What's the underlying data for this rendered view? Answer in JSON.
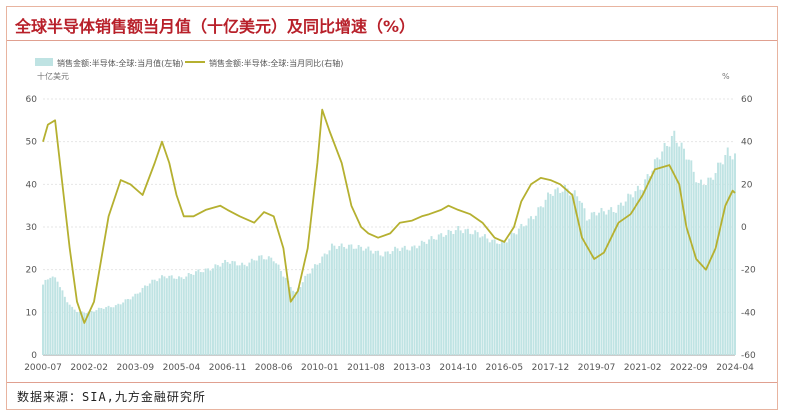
{
  "title": "全球半导体销售额当月值（十亿美元）及同比增速（%）",
  "source": "数据来源：SIA,九方金融研究所",
  "chart_data": {
    "type": "bar+line",
    "legend": {
      "placement": "top-left",
      "items": [
        "销售金额:半导体:全球:当月值(左轴)",
        "销售金额:半导体:全球:当月同比(右轴)"
      ]
    },
    "left_axis": {
      "unit": "十亿美元",
      "range": [
        0,
        60
      ],
      "ticks": [
        "0",
        "10",
        "20",
        "30",
        "40",
        "50",
        "60"
      ]
    },
    "right_axis": {
      "unit": "%",
      "range": [
        -60,
        60
      ],
      "ticks": [
        "-60",
        "-40",
        "-20",
        "0",
        "20",
        "40",
        "60"
      ]
    },
    "x_axis": {
      "range": [
        "2000-07",
        "2024-04"
      ],
      "ticks": [
        "2000-07",
        "2002-02",
        "2003-09",
        "2005-04",
        "2006-11",
        "2008-06",
        "2010-01",
        "2011-08",
        "2013-03",
        "2014-10",
        "2016-05",
        "2017-12",
        "2019-07",
        "2021-02",
        "2022-09",
        "2024-04"
      ]
    },
    "colors": {
      "bars": "#bfe3e3",
      "line": "#b5b030",
      "title": "#b8202a"
    },
    "series": [
      {
        "name": "销售金额:半导体:全球:当月值(左轴)",
        "type": "bar",
        "points": [
          [
            "2000-07",
            16.5
          ],
          [
            "2000-10",
            18.5
          ],
          [
            "2001-01",
            17.5
          ],
          [
            "2001-04",
            13.5
          ],
          [
            "2001-07",
            11.0
          ],
          [
            "2001-10",
            10.0
          ],
          [
            "2002-02",
            10.0
          ],
          [
            "2002-07",
            11.0
          ],
          [
            "2003-01",
            11.5
          ],
          [
            "2003-09",
            14.0
          ],
          [
            "2004-03",
            17.0
          ],
          [
            "2004-09",
            18.5
          ],
          [
            "2005-04",
            18.0
          ],
          [
            "2005-10",
            19.5
          ],
          [
            "2006-03",
            20.0
          ],
          [
            "2006-11",
            22.0
          ],
          [
            "2007-06",
            21.0
          ],
          [
            "2007-12",
            23.0
          ],
          [
            "2008-06",
            22.5
          ],
          [
            "2008-12",
            17.0
          ],
          [
            "2009-03",
            14.5
          ],
          [
            "2009-08",
            19.0
          ],
          [
            "2010-01",
            22.0
          ],
          [
            "2010-06",
            25.5
          ],
          [
            "2011-01",
            25.5
          ],
          [
            "2011-08",
            25.0
          ],
          [
            "2012-03",
            23.5
          ],
          [
            "2012-09",
            25.0
          ],
          [
            "2013-03",
            25.0
          ],
          [
            "2013-10",
            27.0
          ],
          [
            "2014-10",
            29.5
          ],
          [
            "2015-06",
            28.5
          ],
          [
            "2016-01,",
            26.5
          ],
          [
            "2016-05",
            26.5
          ],
          [
            "2016-12",
            30.0
          ],
          [
            "2017-06",
            33.0
          ],
          [
            "2017-12",
            38.0
          ],
          [
            "2018-06",
            39.0
          ],
          [
            "2018-12",
            37.0
          ],
          [
            "2019-03",
            32.0
          ],
          [
            "2019-07",
            33.5
          ],
          [
            "2020-03",
            34.0
          ],
          [
            "2020-09",
            37.5
          ],
          [
            "2021-02",
            39.5
          ],
          [
            "2021-09",
            47.0
          ],
          [
            "2022-03",
            51.5
          ],
          [
            "2022-09",
            46.0
          ],
          [
            "2023-01",
            40.0
          ],
          [
            "2023-06",
            41.0
          ],
          [
            "2023-10",
            45.0
          ],
          [
            "2024-01",
            47.5
          ],
          [
            "2024-04",
            46.5
          ]
        ]
      },
      {
        "name": "销售金额:半导体:全球:当月同比(右轴)",
        "type": "line",
        "points": [
          [
            "2000-07",
            40
          ],
          [
            "2000-09",
            48
          ],
          [
            "2000-12",
            50
          ],
          [
            "2001-03",
            20
          ],
          [
            "2001-06",
            -10
          ],
          [
            "2001-09",
            -35
          ],
          [
            "2001-12",
            -45
          ],
          [
            "2002-04",
            -35
          ],
          [
            "2002-10",
            5
          ],
          [
            "2003-03",
            22
          ],
          [
            "2003-07",
            20
          ],
          [
            "2003-12",
            15
          ],
          [
            "2004-05",
            30
          ],
          [
            "2004-08",
            40
          ],
          [
            "2004-11",
            30
          ],
          [
            "2005-02",
            15
          ],
          [
            "2005-05",
            5
          ],
          [
            "2005-09",
            5
          ],
          [
            "2006-02",
            8
          ],
          [
            "2006-08",
            10
          ],
          [
            "2006-11",
            8
          ],
          [
            "2007-04",
            5
          ],
          [
            "2007-10",
            2
          ],
          [
            "2008-02",
            7
          ],
          [
            "2008-06",
            5
          ],
          [
            "2008-10",
            -10
          ],
          [
            "2009-01",
            -35
          ],
          [
            "2009-04",
            -30
          ],
          [
            "2009-08",
            -10
          ],
          [
            "2009-12",
            30
          ],
          [
            "2010-02",
            55
          ],
          [
            "2010-05",
            45
          ],
          [
            "2010-10",
            30
          ],
          [
            "2011-02",
            10
          ],
          [
            "2011-06",
            0
          ],
          [
            "2011-09",
            -3
          ],
          [
            "2012-01",
            -5
          ],
          [
            "2012-06",
            -3
          ],
          [
            "2012-10",
            2
          ],
          [
            "2013-03",
            3
          ],
          [
            "2013-07",
            5
          ],
          [
            "2013-10",
            6
          ],
          [
            "2014-03",
            8
          ],
          [
            "2014-06",
            10
          ],
          [
            "2014-10",
            8
          ],
          [
            "2015-03",
            6
          ],
          [
            "2015-08",
            2
          ],
          [
            "2016-01",
            -5
          ],
          [
            "2016-05",
            -7
          ],
          [
            "2016-09",
            0
          ],
          [
            "2016-12",
            12
          ],
          [
            "2017-04",
            20
          ],
          [
            "2017-08",
            23
          ],
          [
            "2017-12",
            22
          ],
          [
            "2018-04",
            20
          ],
          [
            "2018-09",
            15
          ],
          [
            "2019-01",
            -5
          ],
          [
            "2019-06",
            -15
          ],
          [
            "2019-10",
            -12
          ],
          [
            "2020-04",
            2
          ],
          [
            "2020-09",
            6
          ],
          [
            "2021-02",
            15
          ],
          [
            "2021-07",
            27
          ],
          [
            "2022-01",
            29
          ],
          [
            "2022-05",
            20
          ],
          [
            "2022-08",
            0
          ],
          [
            "2022-12",
            -15
          ],
          [
            "2023-04",
            -20
          ],
          [
            "2023-08",
            -10
          ],
          [
            "2023-12",
            10
          ],
          [
            "2024-03",
            17
          ],
          [
            "2024-04",
            16
          ]
        ]
      }
    ]
  }
}
